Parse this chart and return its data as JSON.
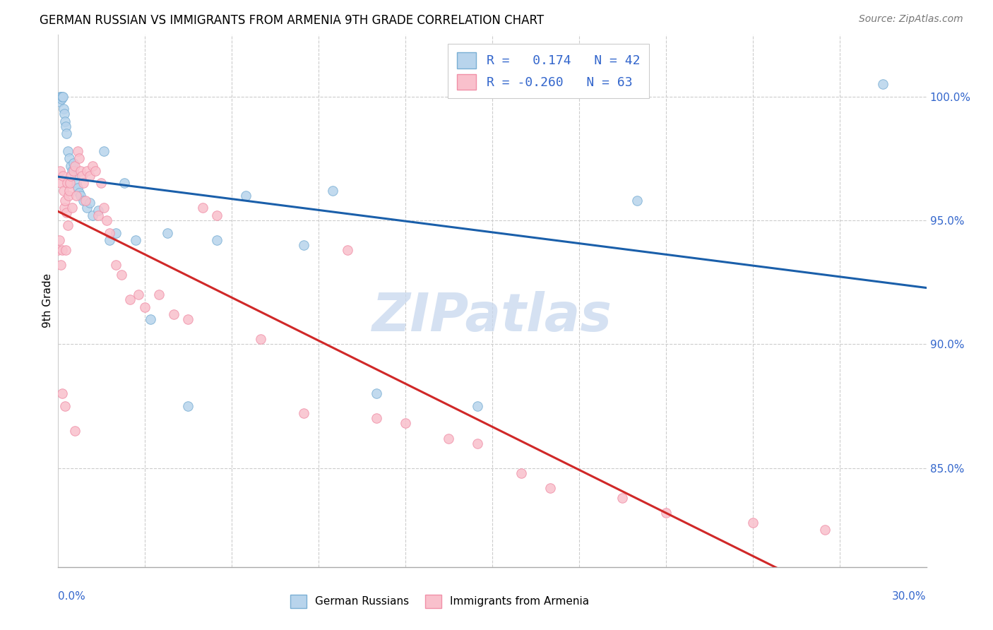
{
  "title": "GERMAN RUSSIAN VS IMMIGRANTS FROM ARMENIA 9TH GRADE CORRELATION CHART",
  "source": "Source: ZipAtlas.com",
  "ylabel": "9th Grade",
  "xmin": 0.0,
  "xmax": 30.0,
  "ymin": 81.0,
  "ymax": 102.5,
  "right_yticks": [
    85.0,
    90.0,
    95.0,
    100.0
  ],
  "right_ytick_labels": [
    "85.0%",
    "90.0%",
    "95.0%",
    "100.0%"
  ],
  "legend_r_blue": "0.174",
  "legend_n_blue": "42",
  "legend_r_pink": "-0.260",
  "legend_n_pink": "63",
  "blue_scatter_color": "#b8d4ec",
  "blue_scatter_edge": "#7aafd4",
  "pink_scatter_color": "#f9c0cc",
  "pink_scatter_edge": "#f090a8",
  "blue_line_color": "#1a5faa",
  "pink_line_color": "#d02828",
  "grid_color": "#cccccc",
  "axis_label_color": "#3366cc",
  "watermark_color": "#c8d8ee",
  "watermark_text": "ZIPatlas",
  "blue_x": [
    0.05,
    0.08,
    0.1,
    0.13,
    0.15,
    0.18,
    0.2,
    0.22,
    0.25,
    0.28,
    0.3,
    0.35,
    0.4,
    0.45,
    0.5,
    0.55,
    0.6,
    0.65,
    0.7,
    0.75,
    0.8,
    0.9,
    1.0,
    1.1,
    1.2,
    1.4,
    1.6,
    1.8,
    2.0,
    2.3,
    2.7,
    3.2,
    3.8,
    4.5,
    5.5,
    6.5,
    8.5,
    9.5,
    11.0,
    14.5,
    20.0,
    28.5
  ],
  "blue_y": [
    99.8,
    100.0,
    100.0,
    99.9,
    100.0,
    100.0,
    99.5,
    99.3,
    99.0,
    98.8,
    98.5,
    97.8,
    97.5,
    97.2,
    97.0,
    97.3,
    96.8,
    96.5,
    96.3,
    96.1,
    96.0,
    95.8,
    95.5,
    95.7,
    95.2,
    95.4,
    97.8,
    94.2,
    94.5,
    96.5,
    94.2,
    91.0,
    94.5,
    87.5,
    94.2,
    96.0,
    94.0,
    96.2,
    88.0,
    87.5,
    95.8,
    100.5
  ],
  "pink_x": [
    0.02,
    0.05,
    0.08,
    0.1,
    0.12,
    0.15,
    0.18,
    0.2,
    0.22,
    0.25,
    0.28,
    0.3,
    0.32,
    0.35,
    0.38,
    0.4,
    0.42,
    0.45,
    0.5,
    0.55,
    0.6,
    0.65,
    0.7,
    0.75,
    0.8,
    0.85,
    0.9,
    0.95,
    1.0,
    1.1,
    1.2,
    1.3,
    1.4,
    1.5,
    1.6,
    1.7,
    1.8,
    2.0,
    2.2,
    2.5,
    2.8,
    3.0,
    3.5,
    4.0,
    4.5,
    5.0,
    5.5,
    7.0,
    8.5,
    10.0,
    11.0,
    12.0,
    13.5,
    14.5,
    16.0,
    17.0,
    19.5,
    21.0,
    24.0,
    26.5,
    0.15,
    0.25,
    0.6
  ],
  "pink_y": [
    93.8,
    94.2,
    97.0,
    96.5,
    93.2,
    93.8,
    96.8,
    96.2,
    95.5,
    95.8,
    93.8,
    95.3,
    96.5,
    94.8,
    96.0,
    96.2,
    96.5,
    96.8,
    95.5,
    97.0,
    97.2,
    96.0,
    97.8,
    97.5,
    97.0,
    96.8,
    96.5,
    95.8,
    97.0,
    96.8,
    97.2,
    97.0,
    95.2,
    96.5,
    95.5,
    95.0,
    94.5,
    93.2,
    92.8,
    91.8,
    92.0,
    91.5,
    92.0,
    91.2,
    91.0,
    95.5,
    95.2,
    90.2,
    87.2,
    93.8,
    87.0,
    86.8,
    86.2,
    86.0,
    84.8,
    84.2,
    83.8,
    83.2,
    82.8,
    82.5,
    88.0,
    87.5,
    86.5
  ]
}
